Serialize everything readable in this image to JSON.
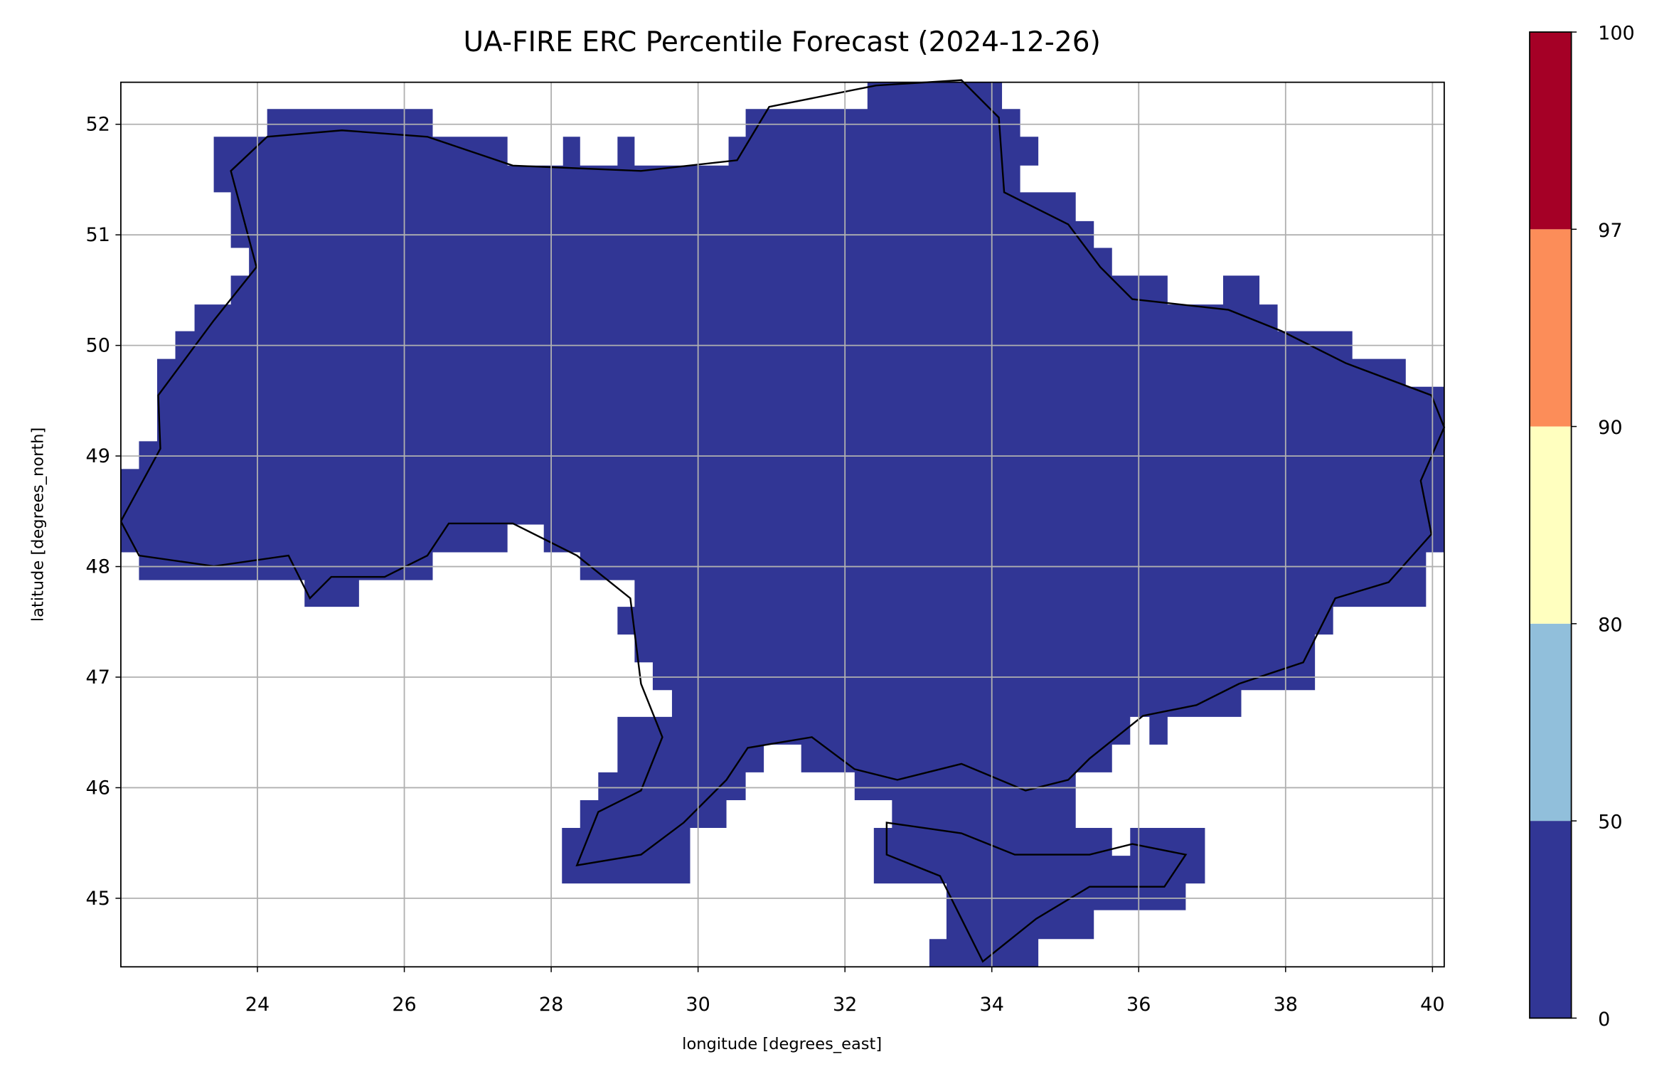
{
  "chart_data": {
    "type": "raster-map",
    "title": "UA-FIRE ERC Percentile Forecast (2024-12-26)",
    "x_label": "longitude [degrees_east]",
    "y_label": "latitude [degrees_north]",
    "xlim": [
      22.14,
      40.16
    ],
    "ylim": [
      44.38,
      52.38
    ],
    "xticks": [
      24,
      26,
      28,
      30,
      32,
      34,
      36,
      38,
      40
    ],
    "yticks": [
      45,
      46,
      47,
      48,
      49,
      50,
      51,
      52
    ],
    "grid": true,
    "colorbar": {
      "boundaries": [
        0,
        50,
        80,
        90,
        97,
        100
      ],
      "colors": [
        "#313695",
        "#91bfdb",
        "#ffffbf",
        "#fc8d59",
        "#a50026"
      ]
    }
  }
}
